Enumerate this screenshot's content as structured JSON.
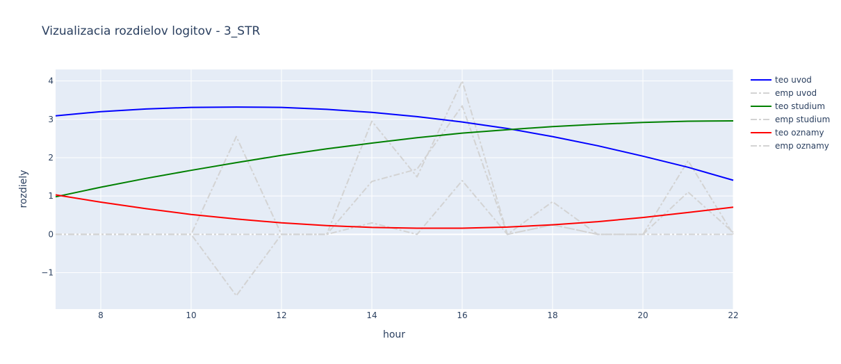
{
  "chart_data": {
    "type": "line",
    "title": "Vizualizacia rozdielov logitov - 3_STR",
    "xlabel": "hour",
    "ylabel": "rozdiely",
    "xlim": [
      7,
      22
    ],
    "ylim": [
      -1.95,
      4.3
    ],
    "x_ticks": [
      8,
      10,
      12,
      14,
      16,
      18,
      20,
      22
    ],
    "y_ticks": [
      -1,
      0,
      1,
      2,
      3,
      4
    ],
    "grid": true,
    "legend_position": "right",
    "plot_bgcolor": "#e5ecf6",
    "series": [
      {
        "name": "teo uvod",
        "color": "#0000ff",
        "dash": "solid",
        "x": [
          7,
          8,
          9,
          10,
          11,
          12,
          13,
          14,
          15,
          16,
          17,
          18,
          19,
          20,
          21,
          22
        ],
        "y": [
          3.09,
          3.2,
          3.27,
          3.31,
          3.32,
          3.31,
          3.26,
          3.18,
          3.07,
          2.93,
          2.76,
          2.55,
          2.31,
          2.04,
          1.75,
          1.41
        ]
      },
      {
        "name": "emp uvod",
        "color": "#d3d3d3",
        "dash": "dashdot",
        "x": [
          7,
          8,
          9,
          10,
          11,
          12,
          13,
          14,
          15,
          16,
          17,
          18,
          19,
          20,
          21,
          22
        ],
        "y": [
          0,
          0,
          0,
          0,
          2.55,
          0,
          0,
          2.95,
          1.5,
          4.0,
          0,
          0.85,
          0,
          0,
          1.92,
          0
        ]
      },
      {
        "name": "teo studium",
        "color": "#008000",
        "dash": "solid",
        "x": [
          7,
          8,
          9,
          10,
          11,
          12,
          13,
          14,
          15,
          16,
          17,
          18,
          19,
          20,
          21,
          22
        ],
        "y": [
          0.98,
          1.23,
          1.46,
          1.67,
          1.87,
          2.06,
          2.23,
          2.38,
          2.52,
          2.64,
          2.73,
          2.81,
          2.87,
          2.92,
          2.95,
          2.96
        ]
      },
      {
        "name": "emp studium",
        "color": "#d3d3d3",
        "dash": "dashdot",
        "x": [
          7,
          8,
          9,
          10,
          11,
          12,
          13,
          14,
          15,
          16,
          17,
          18,
          19,
          20,
          21,
          22
        ],
        "y": [
          0,
          0,
          0,
          0,
          -1.6,
          0,
          0,
          1.38,
          1.7,
          3.35,
          0,
          0.25,
          0,
          0,
          1.1,
          0.05
        ]
      },
      {
        "name": "teo oznamy",
        "color": "#ff0000",
        "dash": "solid",
        "x": [
          7,
          8,
          9,
          10,
          11,
          12,
          13,
          14,
          15,
          16,
          17,
          18,
          19,
          20,
          21,
          22
        ],
        "y": [
          1.03,
          0.84,
          0.67,
          0.52,
          0.4,
          0.3,
          0.23,
          0.18,
          0.16,
          0.16,
          0.19,
          0.25,
          0.33,
          0.44,
          0.57,
          0.71
        ]
      },
      {
        "name": "emp oznamy",
        "color": "#d3d3d3",
        "dash": "dashdot",
        "x": [
          7,
          8,
          9,
          10,
          11,
          12,
          13,
          14,
          15,
          16,
          17,
          18,
          19,
          20,
          21,
          22
        ],
        "y": [
          0,
          0,
          0,
          0,
          0,
          0,
          0,
          0.3,
          0,
          1.4,
          0,
          0.25,
          0,
          0,
          0,
          0
        ]
      }
    ]
  }
}
